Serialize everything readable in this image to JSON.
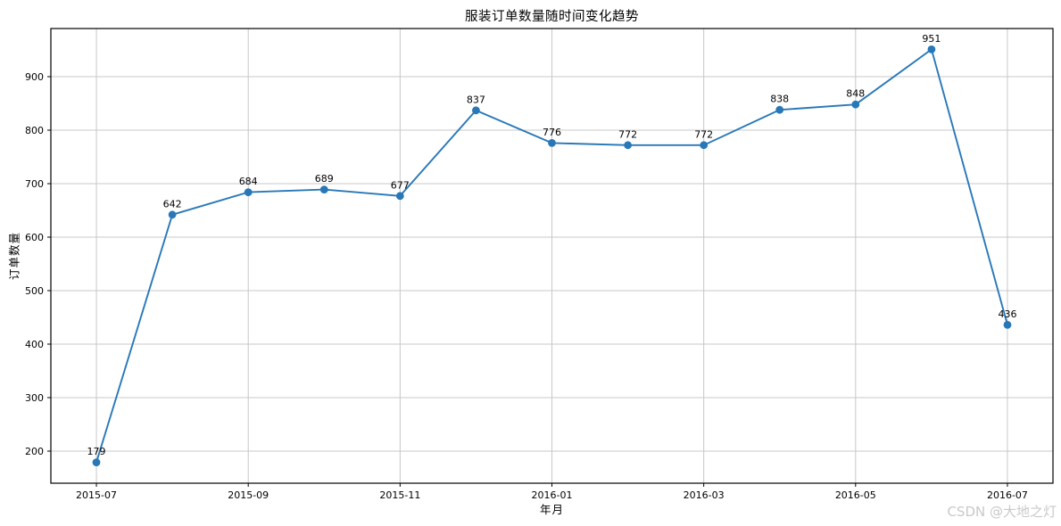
{
  "chart_data": {
    "type": "line",
    "title": "服装订单数量随时间变化趋势",
    "xlabel": "年月",
    "ylabel": "订单数量",
    "x": [
      "2015-07",
      "2015-08",
      "2015-09",
      "2015-10",
      "2015-11",
      "2015-12",
      "2016-01",
      "2016-02",
      "2016-03",
      "2016-04",
      "2016-05",
      "2016-06",
      "2016-07"
    ],
    "values": [
      179,
      642,
      684,
      689,
      677,
      837,
      776,
      772,
      772,
      838,
      848,
      951,
      436
    ],
    "point_labels": [
      "179",
      "642",
      "684",
      "689",
      "677",
      "837",
      "776",
      "772",
      "772",
      "838",
      "848",
      "951",
      "436"
    ],
    "xtick_indices": [
      0,
      2,
      4,
      6,
      8,
      10,
      12
    ],
    "xtick_labels": [
      "2015-07",
      "2015-09",
      "2015-11",
      "2016-01",
      "2016-03",
      "2016-05",
      "2016-07"
    ],
    "yticks": [
      200,
      300,
      400,
      500,
      600,
      700,
      800,
      900
    ],
    "ylim": [
      140,
      990
    ],
    "xlim": [
      -0.6,
      12.6
    ],
    "grid": true,
    "legend_position": "none",
    "colors": {
      "line": "#2878b8",
      "marker": "#2878b8",
      "grid": "#c8c8c8",
      "frame": "#000000",
      "tick_text": "#000000",
      "annotation_text": "#000000"
    }
  },
  "watermark": {
    "text": "CSDN @大地之灯",
    "color": "#c9c9cd"
  }
}
